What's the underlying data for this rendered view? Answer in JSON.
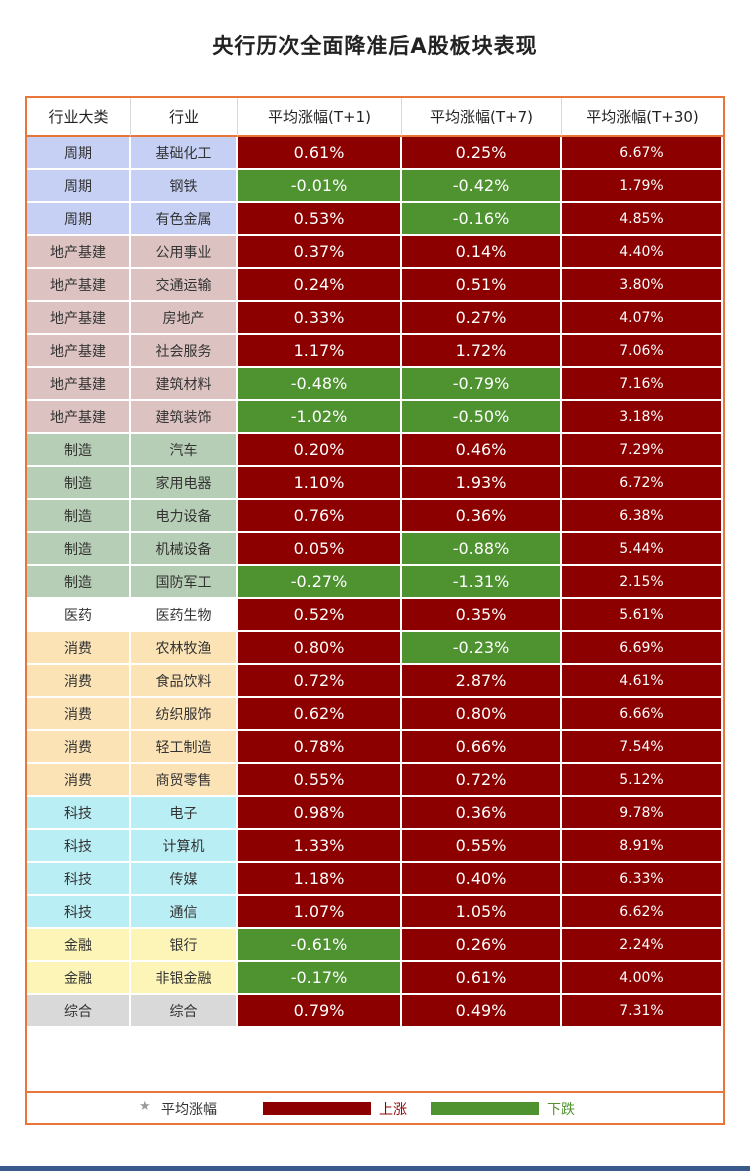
{
  "title": "央行历次全面降准后A股板块表现",
  "colors": {
    "up": "#8c0000",
    "down": "#4f9331",
    "border": "#e8753a"
  },
  "category_colors": {
    "周期": "#c6d0f5",
    "地产基建": "#dcc3c1",
    "制造": "#b7ceb6",
    "医药": "#ffffff",
    "消费": "#fbe3b6",
    "科技": "#b9eef4",
    "金融": "#fdf5b8",
    "综合": "#d9d9d9"
  },
  "chart_data": {
    "type": "table",
    "title": "央行历次全面降准后A股板块表现",
    "columns": [
      "行业大类",
      "行业",
      "平均涨幅(T+1)",
      "平均涨幅(T+7)",
      "平均涨幅(T+30)"
    ],
    "rows": [
      [
        "周期",
        "基础化工",
        "0.61%",
        "0.25%",
        "6.67%"
      ],
      [
        "周期",
        "钢铁",
        "-0.01%",
        "-0.42%",
        "1.79%"
      ],
      [
        "周期",
        "有色金属",
        "0.53%",
        "-0.16%",
        "4.85%"
      ],
      [
        "地产基建",
        "公用事业",
        "0.37%",
        "0.14%",
        "4.40%"
      ],
      [
        "地产基建",
        "交通运输",
        "0.24%",
        "0.51%",
        "3.80%"
      ],
      [
        "地产基建",
        "房地产",
        "0.33%",
        "0.27%",
        "4.07%"
      ],
      [
        "地产基建",
        "社会服务",
        "1.17%",
        "1.72%",
        "7.06%"
      ],
      [
        "地产基建",
        "建筑材料",
        "-0.48%",
        "-0.79%",
        "7.16%"
      ],
      [
        "地产基建",
        "建筑装饰",
        "-1.02%",
        "-0.50%",
        "3.18%"
      ],
      [
        "制造",
        "汽车",
        "0.20%",
        "0.46%",
        "7.29%"
      ],
      [
        "制造",
        "家用电器",
        "1.10%",
        "1.93%",
        "6.72%"
      ],
      [
        "制造",
        "电力设备",
        "0.76%",
        "0.36%",
        "6.38%"
      ],
      [
        "制造",
        "机械设备",
        "0.05%",
        "-0.88%",
        "5.44%"
      ],
      [
        "制造",
        "国防军工",
        "-0.27%",
        "-1.31%",
        "2.15%"
      ],
      [
        "医药",
        "医药生物",
        "0.52%",
        "0.35%",
        "5.61%"
      ],
      [
        "消费",
        "农林牧渔",
        "0.80%",
        "-0.23%",
        "6.69%"
      ],
      [
        "消费",
        "食品饮料",
        "0.72%",
        "2.87%",
        "4.61%"
      ],
      [
        "消费",
        "纺织服饰",
        "0.62%",
        "0.80%",
        "6.66%"
      ],
      [
        "消费",
        "轻工制造",
        "0.78%",
        "0.66%",
        "7.54%"
      ],
      [
        "消费",
        "商贸零售",
        "0.55%",
        "0.72%",
        "5.12%"
      ],
      [
        "科技",
        "电子",
        "0.98%",
        "0.36%",
        "9.78%"
      ],
      [
        "科技",
        "计算机",
        "1.33%",
        "0.55%",
        "8.91%"
      ],
      [
        "科技",
        "传媒",
        "1.18%",
        "0.40%",
        "6.33%"
      ],
      [
        "科技",
        "通信",
        "1.07%",
        "1.05%",
        "6.62%"
      ],
      [
        "金融",
        "银行",
        "-0.61%",
        "0.26%",
        "2.24%"
      ],
      [
        "金融",
        "非银金融",
        "-0.17%",
        "0.61%",
        "4.00%"
      ],
      [
        "综合",
        "综合",
        "0.79%",
        "0.49%",
        "7.31%"
      ]
    ]
  },
  "legend": {
    "star": "★",
    "title": "平均涨幅",
    "up_label": "上涨",
    "down_label": "下跌"
  }
}
